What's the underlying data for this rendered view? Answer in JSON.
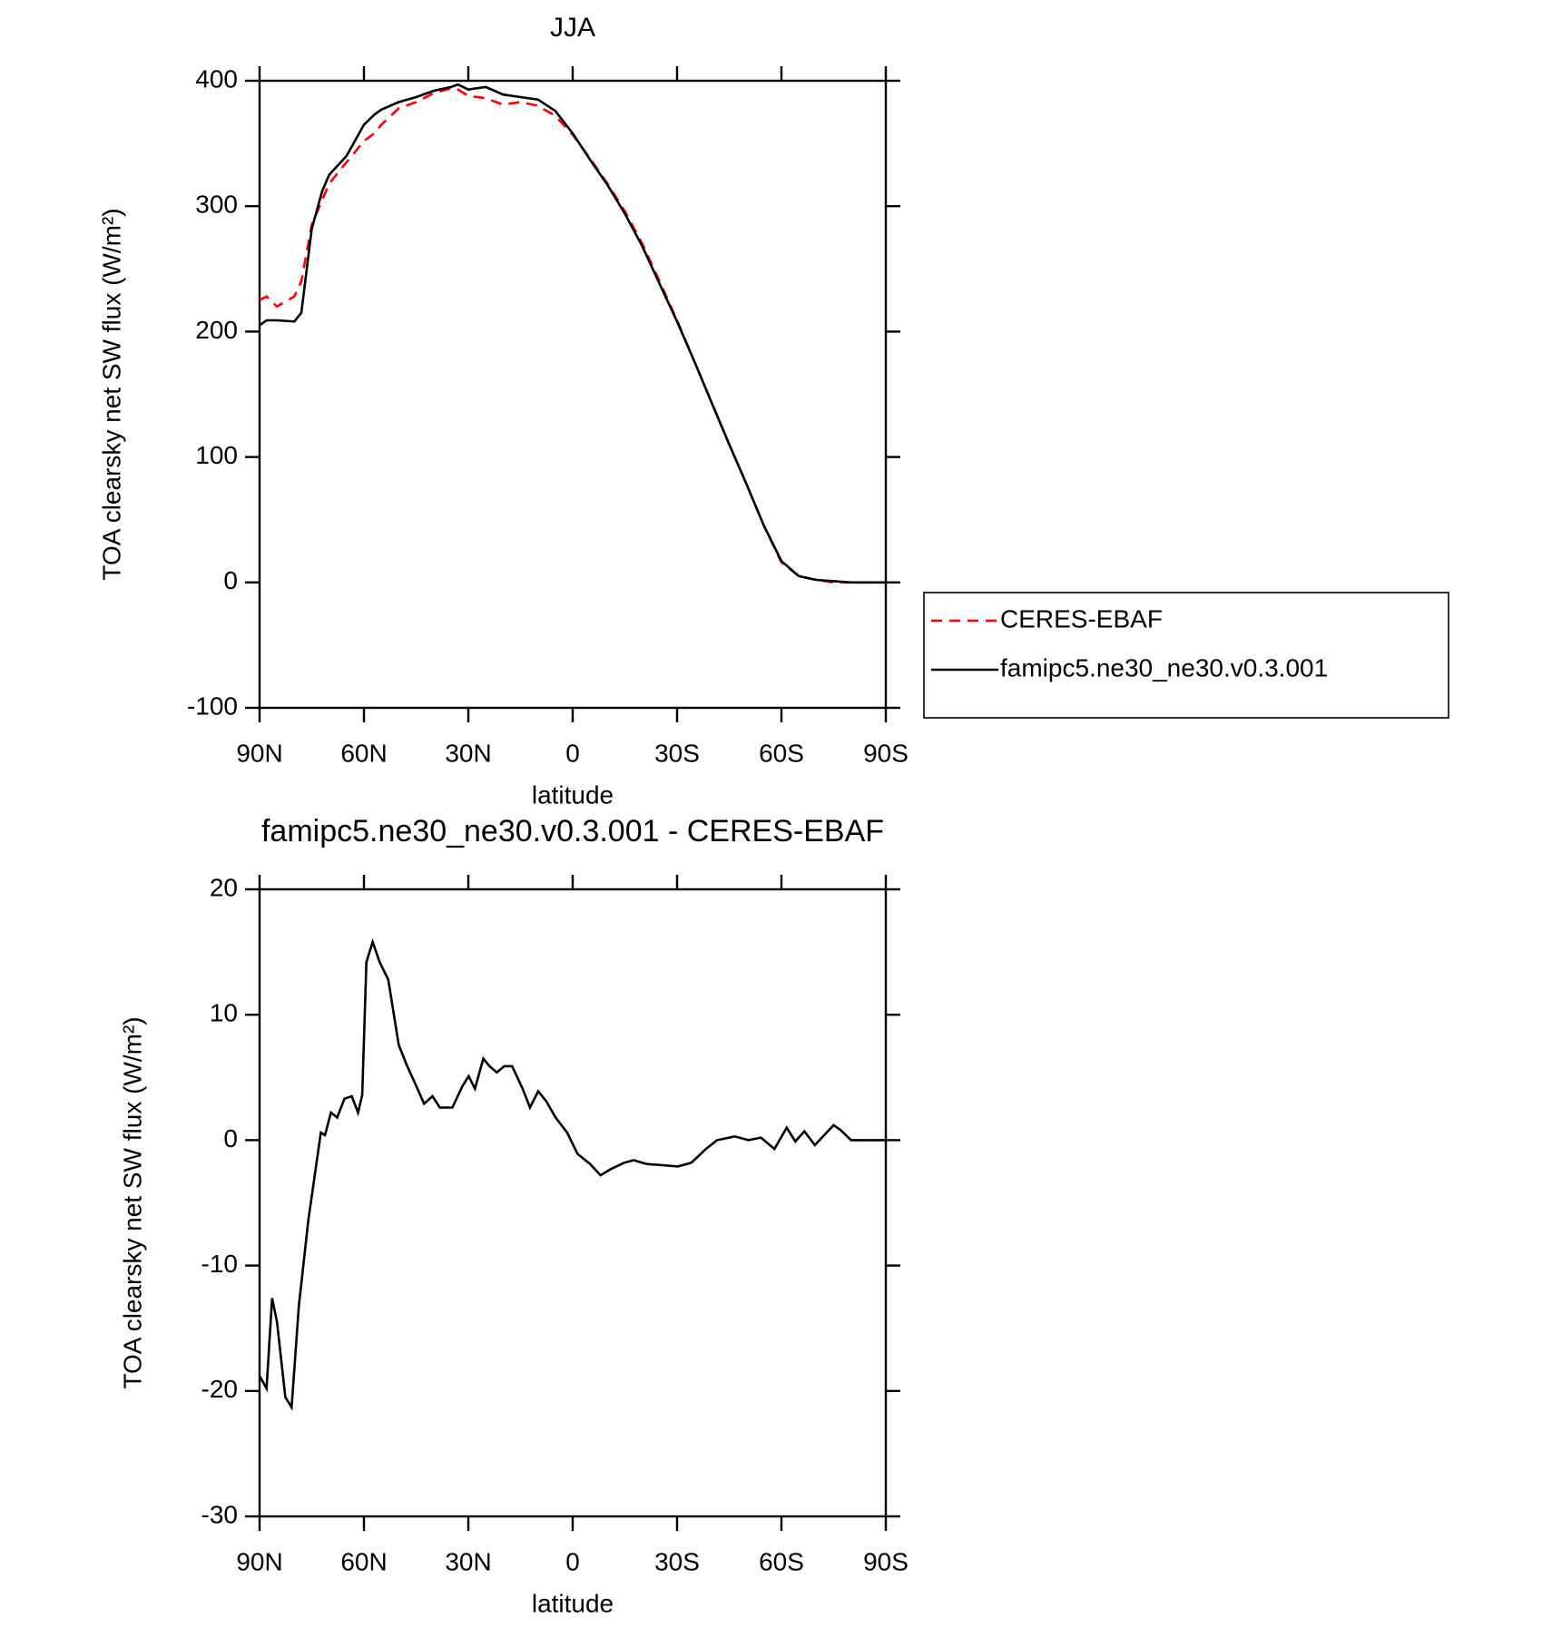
{
  "chart_data": [
    {
      "type": "line",
      "title": "JJA",
      "xlabel": "latitude",
      "ylabel": "TOA clearsky net SW flux (W/m²)",
      "x": [
        90,
        88,
        85,
        80,
        78,
        75,
        72,
        70,
        65,
        62,
        60,
        57,
        55,
        50,
        45,
        40,
        35,
        33,
        30,
        25,
        20,
        15,
        10,
        5,
        0,
        -5,
        -10,
        -15,
        -20,
        -25,
        -30,
        -35,
        -40,
        -45,
        -50,
        -55,
        -60,
        -65,
        -70,
        -75,
        -80,
        -85,
        -90
      ],
      "series": [
        {
          "name": "CERES-EBAF",
          "color": "#ff0000",
          "dashed": true,
          "values": [
            225,
            228,
            220,
            228,
            240,
            285,
            305,
            318,
            335,
            345,
            352,
            358,
            365,
            378,
            383,
            390,
            394,
            393,
            388,
            386,
            381,
            383,
            380,
            372,
            357,
            338,
            318,
            296,
            270,
            240,
            209,
            176,
            143,
            110,
            78,
            45,
            16,
            5,
            2,
            0,
            0,
            0,
            0
          ]
        },
        {
          "name": "famipc5.ne30_ne30.v0.3.001",
          "color": "#000000",
          "dashed": false,
          "values": [
            205,
            209,
            209,
            208,
            215,
            282,
            312,
            325,
            340,
            355,
            365,
            373,
            377,
            383,
            387,
            392,
            395,
            397,
            393,
            395,
            389,
            387,
            385,
            376,
            358,
            337,
            317,
            294,
            268,
            238,
            208,
            176,
            143,
            110,
            78,
            45,
            17,
            5,
            2,
            1,
            0,
            0,
            0
          ]
        }
      ],
      "xlim": [
        90,
        -90
      ],
      "xticks": [
        {
          "value": 90,
          "label": "90N"
        },
        {
          "value": 60,
          "label": "60N"
        },
        {
          "value": 30,
          "label": "30N"
        },
        0,
        {
          "value": -30,
          "label": "30S"
        },
        {
          "value": -60,
          "label": "60S"
        },
        {
          "value": -90,
          "label": "90S"
        }
      ],
      "ylim": [
        -100,
        400
      ],
      "yticks": [
        -100,
        0,
        100,
        200,
        300,
        400
      ],
      "legend": "right"
    },
    {
      "type": "line",
      "title": "famipc5.ne30_ne30.v0.3.001 - CERES-EBAF",
      "xlabel": "latitude",
      "ylabel": "TOA clearsky net SW flux (W/m²)",
      "x": [
        90,
        88,
        86.4,
        85,
        82.6,
        80.8,
        78.7,
        76,
        74.5,
        72.4,
        71.2,
        69.5,
        67.7,
        65.6,
        63.5,
        61.7,
        60.5,
        59.3,
        57.5,
        55.5,
        53,
        50,
        47.7,
        45.6,
        42.7,
        40.3,
        38.2,
        34.6,
        31.7,
        29.9,
        28.1,
        25.7,
        23.9,
        21.8,
        19.7,
        17.4,
        14.4,
        12.3,
        9.9,
        7.6,
        4.9,
        1.6,
        -1.4,
        -5,
        -8,
        -11,
        -14.8,
        -17.5,
        -21.3,
        -25.8,
        -30.2,
        -34.1,
        -38.3,
        -41.5,
        -46.6,
        -50.5,
        -54.1,
        -58,
        -61.5,
        -64,
        -66.6,
        -69.6,
        -75,
        -77,
        -80,
        -90
      ],
      "series": [
        {
          "name": "famipc5.ne30_ne30.v0.3.001 - CERES-EBAF",
          "color": "#000000",
          "dashed": false,
          "values": [
            -18.8,
            -19.8,
            -12.6,
            -14.5,
            -20.5,
            -21.3,
            -13.2,
            -6.4,
            -3.5,
            0.6,
            0.4,
            2.2,
            1.8,
            3.3,
            3.5,
            2.2,
            3.6,
            14.2,
            15.8,
            14.2,
            12.8,
            7.6,
            6,
            4.7,
            2.9,
            3.5,
            2.6,
            2.6,
            4.3,
            5.1,
            4.1,
            6.5,
            5.9,
            5.4,
            5.9,
            5.9,
            4.1,
            2.6,
            3.9,
            3.1,
            1.8,
            0.6,
            -1.1,
            -1.9,
            -2.8,
            -2.3,
            -1.8,
            -1.6,
            -1.9,
            -2,
            -2.1,
            -1.8,
            -0.7,
            0,
            0.3,
            0,
            0.2,
            -0.7,
            1,
            -0.1,
            0.7,
            -0.4,
            1.2,
            0.8,
            0,
            0
          ]
        }
      ],
      "xlim": [
        90,
        -90
      ],
      "xticks": [
        {
          "value": 90,
          "label": "90N"
        },
        {
          "value": 60,
          "label": "60N"
        },
        {
          "value": 30,
          "label": "30N"
        },
        0,
        {
          "value": -30,
          "label": "30S"
        },
        {
          "value": -60,
          "label": "60S"
        },
        {
          "value": -90,
          "label": "90S"
        }
      ],
      "ylim": [
        -30,
        20
      ],
      "yticks": [
        -30,
        -20,
        -10,
        0,
        10,
        20
      ]
    }
  ]
}
